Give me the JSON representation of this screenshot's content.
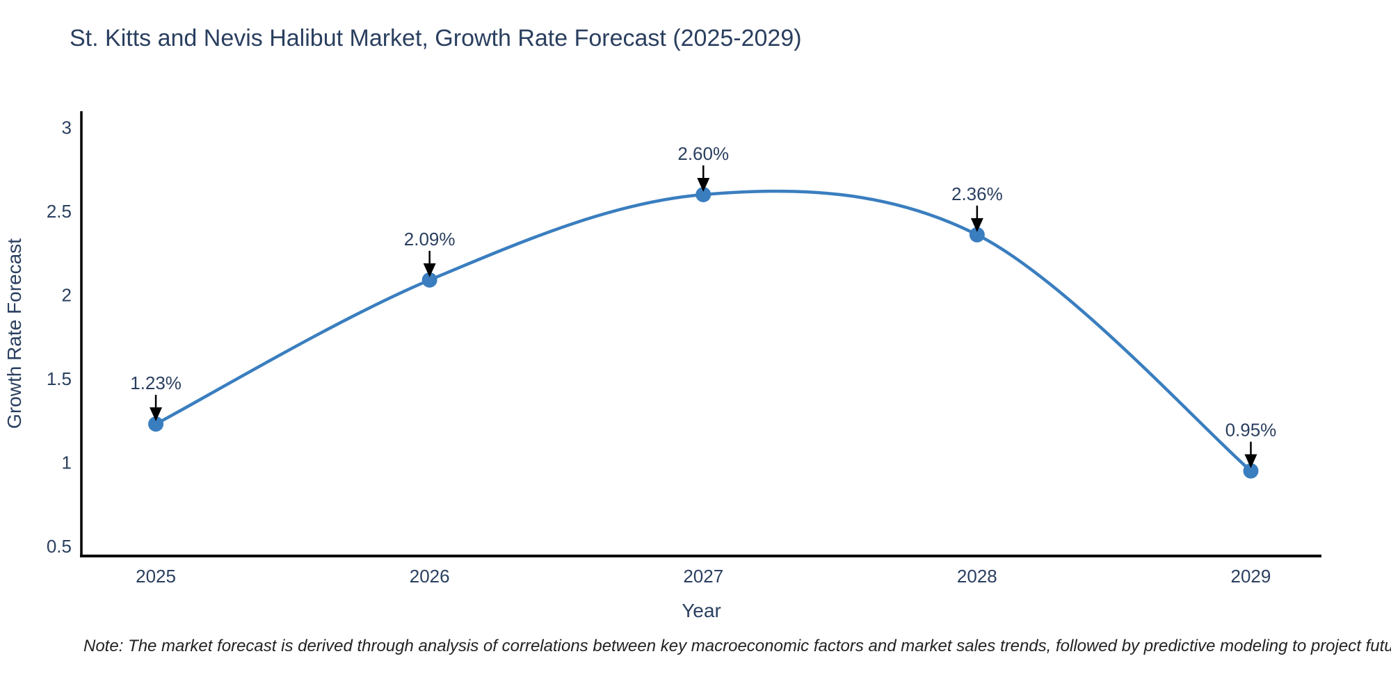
{
  "page": {
    "note": "Note: The market forecast is derived through analysis of correlations between key macroeconomic factors and market sales trends, followed by predictive modeling to project future sales"
  },
  "chart_data": {
    "type": "line",
    "title": "St. Kitts and Nevis Halibut Market, Growth Rate Forecast (2025-2029)",
    "x": [
      2025,
      2026,
      2027,
      2028,
      2029
    ],
    "y": [
      1.23,
      2.09,
      2.6,
      2.36,
      0.95
    ],
    "point_labels": [
      "1.23%",
      "2.09%",
      "2.60%",
      "2.36%",
      "0.95%"
    ],
    "xlabel": "Year",
    "ylabel": "Growth Rate Forecast",
    "yticks": [
      3,
      2.5,
      2,
      1.5,
      1,
      0.5
    ],
    "xticks": [
      "2025",
      "2026",
      "2027",
      "2028",
      "2029"
    ],
    "ylim": [
      0.442,
      3.098
    ],
    "xlim": [
      2024.728,
      2029.258
    ],
    "line_shape": "spline",
    "grid": false,
    "legend_position": "none",
    "line_color": "#3a7ebf",
    "marker_color": "#3a7ebf",
    "arrow_color": "#000000",
    "axis_color": "#000000",
    "text_color": "#2a3f5f"
  }
}
